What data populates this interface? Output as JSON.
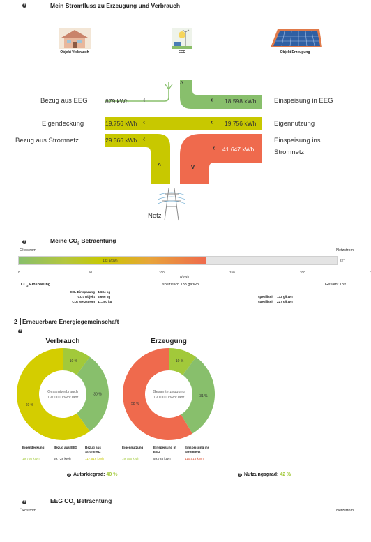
{
  "stromfluss": {
    "title": "Mein Stromfluss zu Erzeugung und Verbrauch",
    "objects": {
      "verbrauch": "Objekt Verbrauch",
      "eeg": "EEG",
      "erzeugung": "Objekt Erzeugung"
    },
    "labels": {
      "bezug_eeg": "Bezug aus EEG",
      "eigendeckung": "Eigendeckung",
      "bezug_netz": "Bezug aus Stromnetz",
      "einspeisung_eeg": "Einspeisung in EEG",
      "eigennutzung": "Eigennutzung",
      "einspeisung_netz_1": "Einspeisung ins",
      "einspeisung_netz_2": "Stromnetz",
      "netz": "Netz"
    },
    "values": {
      "bezug_eeg": "879 kWh",
      "einspeisung_eeg": "18.598 kWh",
      "eigendeckung": "19.756 kWh",
      "eigennutzung": "19.756 kWh",
      "bezug_netz": "29.366 kWh",
      "einspeisung_netz": "41.647 kWh"
    },
    "colors": {
      "green": "#88bf6c",
      "yellow": "#c8c800",
      "red": "#ef6a4d"
    }
  },
  "co2": {
    "title_main": "Meine CO",
    "title_sub": "2",
    "title_rest": " Betrachtung",
    "left_label": "Ökostrom",
    "right_label": "Netzstrom",
    "bar_value_label": "133 g/kWh",
    "bar_end_label": "227",
    "bar_fill_fraction": 0.59,
    "ticks": [
      "0",
      "50",
      "100",
      "150",
      "200",
      "2"
    ],
    "axis_unit": "g/kWh",
    "einsparung_label_main": "CO",
    "einsparung_label_sub": "2",
    "einsparung_label_rest": " Einsparung",
    "spezifisch_summary": "spezifisch 133 g/kWh",
    "gesamt": "Gesamt 18 t",
    "rows_left": [
      {
        "label": "CO₂ Einsparung",
        "value": "4.684 kg"
      },
      {
        "label": "CO₂ Objekt",
        "value": "6.666 kg"
      },
      {
        "label": "CO₂ Netzstrom",
        "value": "11.350 kg"
      }
    ],
    "rows_right": [
      {
        "label": "spezifisch",
        "value": "133 g/kWh"
      },
      {
        "label": "spezifisch",
        "value": "227 g/kWh"
      }
    ]
  },
  "eeg_section": {
    "number": "2",
    "title": "Erneuerbare Energiegemeinschaft",
    "verbrauch": {
      "title": "Verbrauch",
      "center_1": "Gesamtverbrauch",
      "center_2": "197.000 kWh/Jahr",
      "slices": [
        {
          "pct": 10,
          "label": "10 %",
          "color": "#a2c93a"
        },
        {
          "pct": 30,
          "label": "30 %",
          "color": "#88bf6c"
        },
        {
          "pct": 60,
          "label": "60 %",
          "color": "#d4cd00"
        }
      ],
      "legend": [
        {
          "h1": "Eigendeckung",
          "h2": "",
          "value": "19.756 kWh",
          "color": "#a2c93a"
        },
        {
          "h1": "Bezug aus EEG",
          "h2": "",
          "value": "59.728 kWh",
          "color": "#222222"
        },
        {
          "h1": "Bezug aus",
          "h2": "Stromnetz",
          "value": "117.516 kWh",
          "color": "#c8c800"
        }
      ]
    },
    "erzeugung": {
      "title": "Erzeugung",
      "center_1": "Gesamterzeugung",
      "center_2": "190.000 kWh/Jahr",
      "slices": [
        {
          "pct": 10,
          "label": "10 %",
          "color": "#a2c93a"
        },
        {
          "pct": 31,
          "label": "31 %",
          "color": "#88bf6c"
        },
        {
          "pct": 58,
          "label": "58 %",
          "color": "#ef6a4d"
        }
      ],
      "legend": [
        {
          "h1": "Eigennutzung",
          "h2": "",
          "value": "19.756 kWh",
          "color": "#a2c93a"
        },
        {
          "h1": "Einspeisung in",
          "h2": "EEG",
          "value": "59.728 kWh",
          "color": "#222222"
        },
        {
          "h1": "Einspeisung ins",
          "h2": "Stromnetz",
          "value": "110.516 kWh",
          "color": "#d94b2b"
        }
      ]
    },
    "autarkie_label": "Autarkiegrad: ",
    "autarkie_value": "40 %",
    "nutzung_label": "Nutzungsgrad: ",
    "nutzung_value": "42 %",
    "accent": "#a2c93a"
  },
  "eeg_co2": {
    "title_main": "EEG CO",
    "title_sub": "2",
    "title_rest": " Betrachtung",
    "left_label": "Ökostrom",
    "right_label": "Netzstrom"
  }
}
